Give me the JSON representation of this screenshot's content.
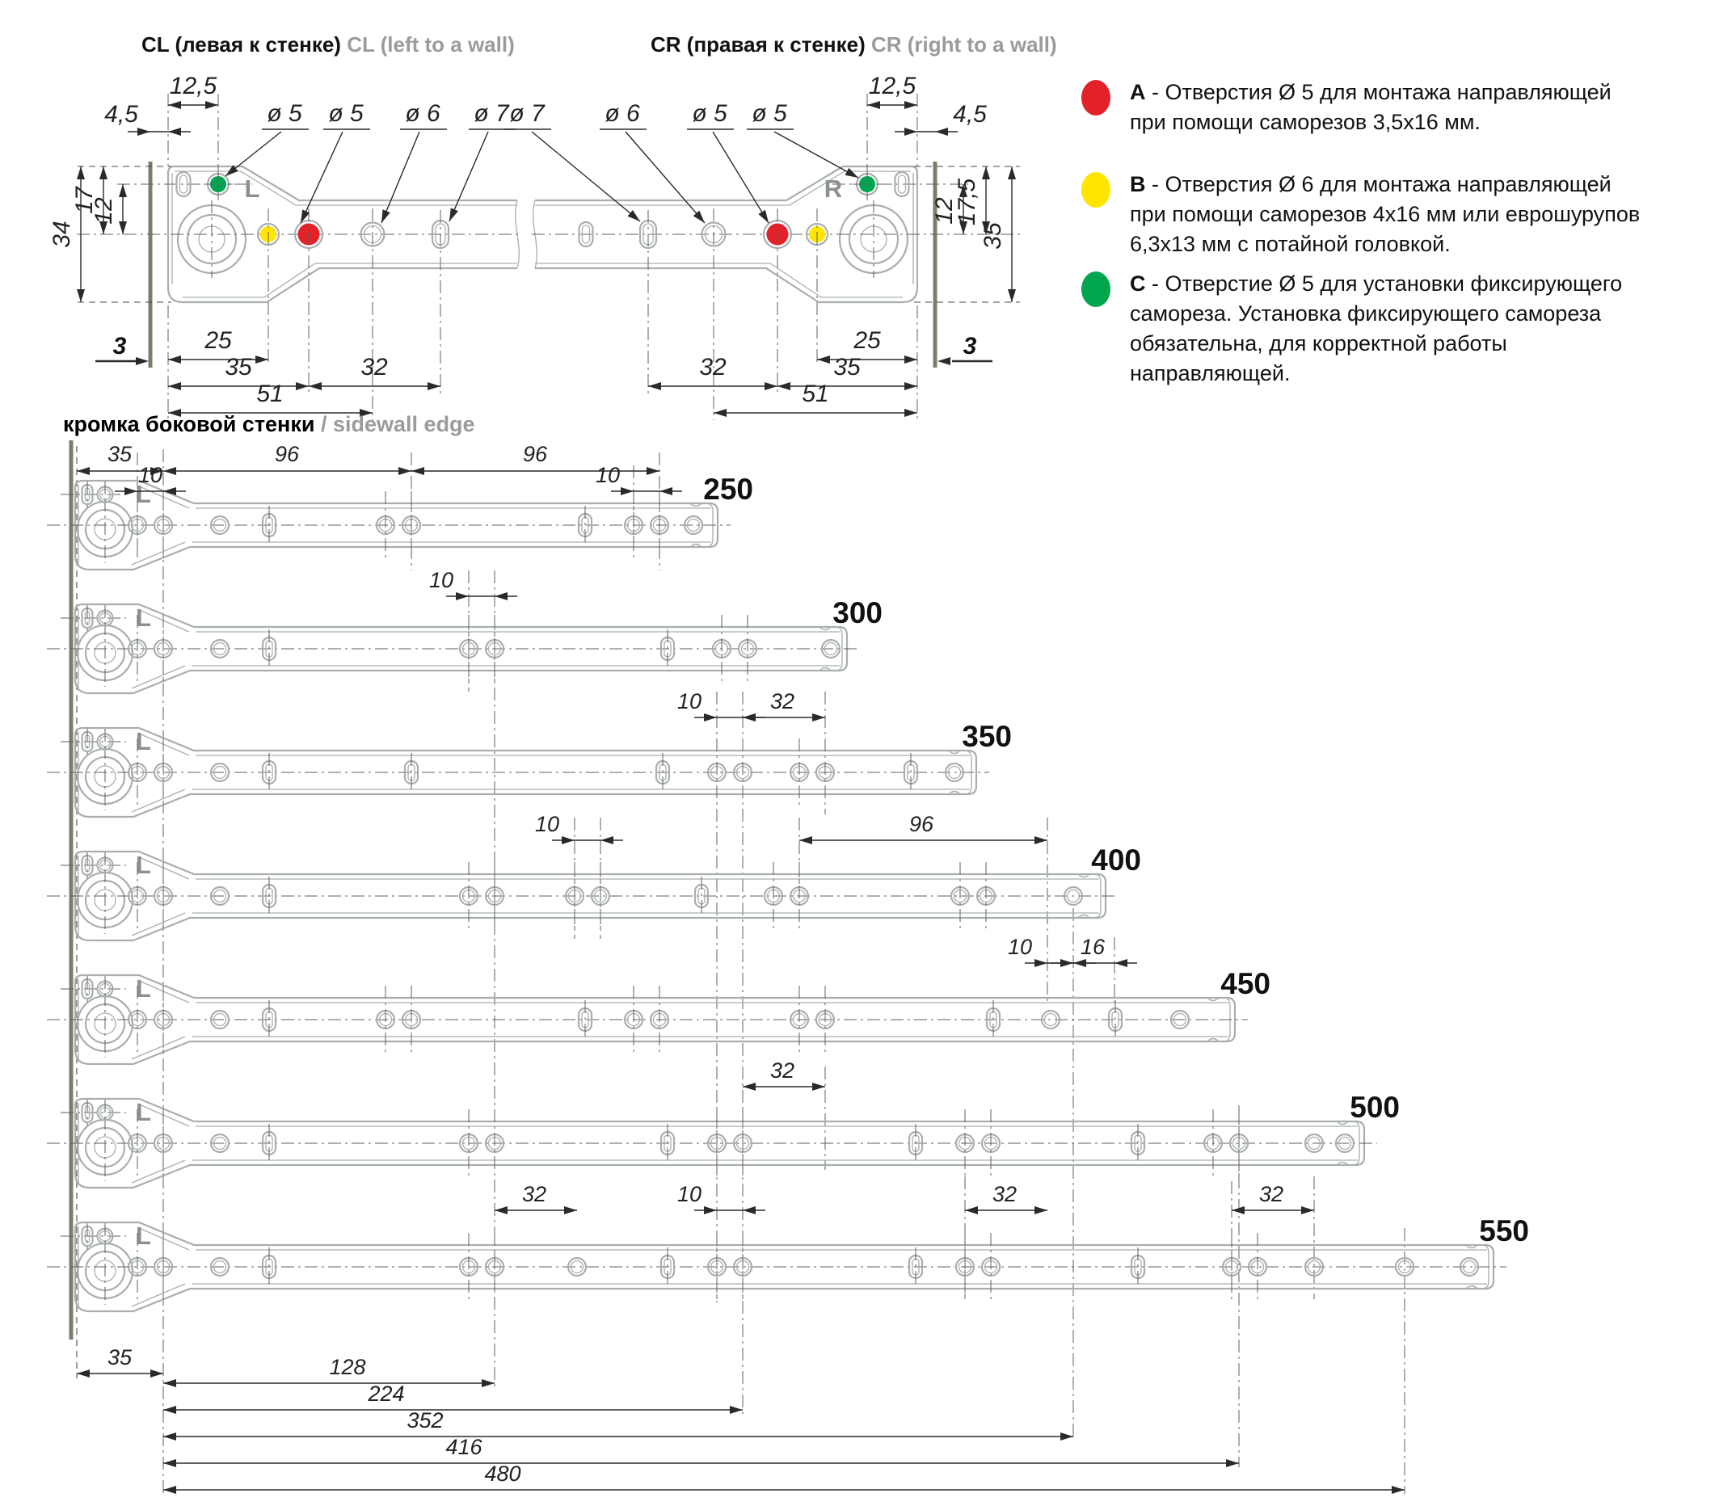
{
  "detail_cl": {
    "code_ru": "CL",
    "title_ru": "(левая к стенке)",
    "code_en": "CL",
    "title_en": "(left to a wall)",
    "marking": "L",
    "callouts": [
      "ø 5",
      "ø 5",
      "ø 6",
      "ø 7"
    ],
    "dims": {
      "d125": "12,5",
      "d45": "4,5",
      "v_top": "17",
      "v_row": "12",
      "v_total": "34",
      "edge": "3",
      "b25": "25",
      "b35": "35",
      "b51": "51",
      "b32": "32"
    }
  },
  "detail_cr": {
    "code_ru": "CR",
    "title_ru": "(правая к стенке)",
    "code_en": "CR",
    "title_en": "(right to a wall)",
    "marking": "R",
    "callouts": [
      "ø 7",
      "ø 6",
      "ø 5",
      "ø 5"
    ],
    "dims": {
      "d125": "12,5",
      "d45": "4,5",
      "v_top": "17,5",
      "v_row": "12",
      "v_total": "35",
      "edge": "3",
      "b25": "25",
      "b35": "35",
      "b51": "51",
      "b32": "32"
    }
  },
  "legend": [
    {
      "letter": "A",
      "color": "#e32128",
      "lines": [
        "Отверстия Ø 5 для монтажа направляющей",
        "при помощи саморезов 3,5х16 мм."
      ]
    },
    {
      "letter": "B",
      "color": "#ffe500",
      "lines": [
        "Отверстия Ø 6 для монтажа направляющей",
        "при помощи саморезов 4х16 мм или еврошурупов",
        "6,3х13 мм с потайной головкой."
      ]
    },
    {
      "letter": "C",
      "color": "#00a550",
      "lines": [
        "Отверстие Ø 5 для установки фиксирующего",
        "самореза. Установка фиксирующего самореза",
        "обязательна, для корректной работы",
        "направляющей."
      ]
    }
  ],
  "sidewall": {
    "ru": "кромка боковой стенки",
    "en": "/ sidewall edge"
  },
  "rails": [
    {
      "label": "250"
    },
    {
      "label": "300"
    },
    {
      "label": "350"
    },
    {
      "label": "400"
    },
    {
      "label": "450"
    },
    {
      "label": "500"
    },
    {
      "label": "550"
    }
  ],
  "annotations": {
    "top": [
      "35",
      "96",
      "96"
    ],
    "top_10": [
      "10",
      "10"
    ],
    "gap_250_300": [
      "10"
    ],
    "gap_300_350": [
      "10",
      "32"
    ],
    "gap_350_400": [
      "10",
      "96"
    ],
    "below_400": [
      "10",
      "16"
    ],
    "gap_450_500": [
      "32"
    ],
    "above_550": [
      "32",
      "10",
      "32",
      "32"
    ],
    "chain": [
      "35",
      "128",
      "224",
      "352",
      "416",
      "480"
    ]
  },
  "colors": {
    "red": "#e32128",
    "yellow": "#ffe500",
    "green": "#00a550",
    "outline": "#a9aeb1",
    "edge": "#7c7d6b",
    "dim": "#2a2a2a",
    "muted": "#9b9b9b"
  }
}
